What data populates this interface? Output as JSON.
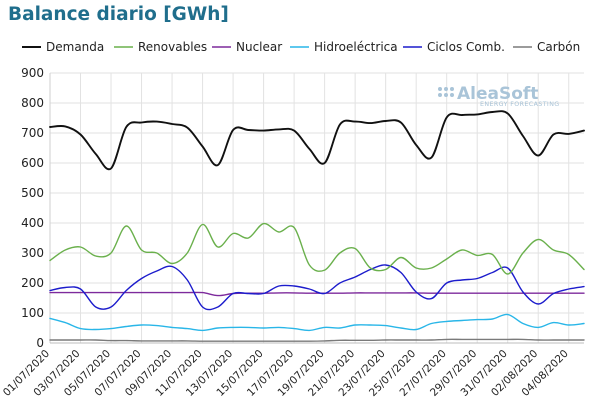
{
  "chart_data": {
    "type": "line",
    "title": "Balance diario [GWh]",
    "xlabel": "",
    "ylabel": "",
    "ylim": [
      0,
      900
    ],
    "yticks": [
      0,
      100,
      200,
      300,
      400,
      500,
      600,
      700,
      800,
      900
    ],
    "grid": true,
    "legend_position": "top",
    "x": [
      "01/07/2020",
      "02/07/2020",
      "03/07/2020",
      "04/07/2020",
      "05/07/2020",
      "06/07/2020",
      "07/07/2020",
      "08/07/2020",
      "09/07/2020",
      "10/07/2020",
      "11/07/2020",
      "12/07/2020",
      "13/07/2020",
      "14/07/2020",
      "15/07/2020",
      "16/07/2020",
      "17/07/2020",
      "18/07/2020",
      "19/07/2020",
      "20/07/2020",
      "21/07/2020",
      "22/07/2020",
      "23/07/2020",
      "24/07/2020",
      "25/07/2020",
      "26/07/2020",
      "27/07/2020",
      "28/07/2020",
      "29/07/2020",
      "30/07/2020",
      "31/07/2020",
      "01/08/2020",
      "02/08/2020",
      "03/08/2020",
      "04/08/2020",
      "05/08/2020"
    ],
    "x_tick_labels": [
      "01/07/2020",
      "03/07/2020",
      "05/07/2020",
      "07/07/2020",
      "09/07/2020",
      "11/07/2020",
      "13/07/2020",
      "15/07/2020",
      "17/07/2020",
      "19/07/2020",
      "21/07/2020",
      "23/07/2020",
      "25/07/2020",
      "27/07/2020",
      "29/07/2020",
      "31/07/2020",
      "02/08/2020",
      "04/08/2020"
    ],
    "series": [
      {
        "name": "Demanda",
        "color": "#111111",
        "values": [
          720,
          722,
          695,
          630,
          582,
          720,
          735,
          738,
          730,
          718,
          655,
          593,
          710,
          710,
          708,
          712,
          708,
          647,
          600,
          728,
          738,
          733,
          740,
          735,
          660,
          618,
          752,
          760,
          762,
          770,
          765,
          690,
          625,
          695,
          697,
          708
        ]
      },
      {
        "name": "Renovables",
        "color": "#6ab04c",
        "values": [
          275,
          310,
          320,
          290,
          300,
          390,
          310,
          300,
          265,
          300,
          395,
          320,
          365,
          350,
          398,
          370,
          385,
          260,
          243,
          300,
          315,
          250,
          245,
          285,
          250,
          250,
          280,
          310,
          292,
          295,
          230,
          300,
          345,
          310,
          295,
          245
        ]
      },
      {
        "name": "Nuclear",
        "color": "#7d2a9c",
        "values": [
          168,
          168,
          168,
          168,
          168,
          168,
          168,
          168,
          168,
          168,
          168,
          158,
          165,
          166,
          166,
          167,
          167,
          166,
          166,
          166,
          167,
          167,
          167,
          167,
          167,
          166,
          166,
          166,
          166,
          166,
          166,
          166,
          166,
          166,
          166,
          166
        ]
      },
      {
        "name": "Hidroeléctrica",
        "color": "#29b6e8",
        "values": [
          82,
          68,
          48,
          45,
          48,
          55,
          60,
          58,
          52,
          48,
          42,
          50,
          52,
          52,
          50,
          52,
          48,
          42,
          52,
          50,
          60,
          60,
          58,
          50,
          45,
          65,
          72,
          75,
          78,
          80,
          95,
          65,
          52,
          68,
          60,
          65
        ]
      },
      {
        "name": "Ciclos Comb.",
        "color": "#1c1ccc",
        "values": [
          175,
          185,
          180,
          120,
          120,
          175,
          215,
          240,
          255,
          210,
          120,
          120,
          165,
          165,
          165,
          190,
          190,
          180,
          165,
          200,
          220,
          245,
          260,
          235,
          170,
          148,
          200,
          210,
          215,
          235,
          250,
          170,
          130,
          165,
          180,
          188
        ]
      },
      {
        "name": "Carbón",
        "color": "#7a7a7a",
        "values": [
          10,
          10,
          10,
          10,
          8,
          8,
          7,
          7,
          7,
          7,
          6,
          6,
          6,
          6,
          6,
          6,
          6,
          6,
          7,
          9,
          9,
          9,
          10,
          10,
          10,
          10,
          12,
          12,
          12,
          12,
          12,
          12,
          10,
          10,
          10,
          10
        ]
      }
    ]
  },
  "watermark": {
    "brand": "AleaSoft",
    "tagline": "ENERGY FORECASTING"
  }
}
